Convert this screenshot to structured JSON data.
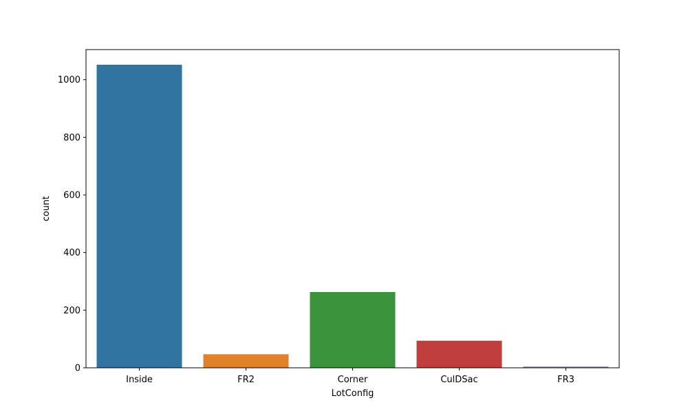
{
  "chart_data": {
    "type": "bar",
    "title": "",
    "xlabel": "LotConfig",
    "ylabel": "count",
    "categories": [
      "Inside",
      "FR2",
      "Corner",
      "CulDSac",
      "FR3"
    ],
    "values": [
      1052,
      47,
      263,
      94,
      4
    ],
    "colors": [
      "#3274a1",
      "#e1812c",
      "#3a923a",
      "#c03d3e",
      "#9372b2"
    ],
    "ylim": [
      0,
      1104.6
    ],
    "yticks": [
      0,
      200,
      400,
      600,
      800,
      1000
    ],
    "grid": false,
    "legend": "none"
  }
}
